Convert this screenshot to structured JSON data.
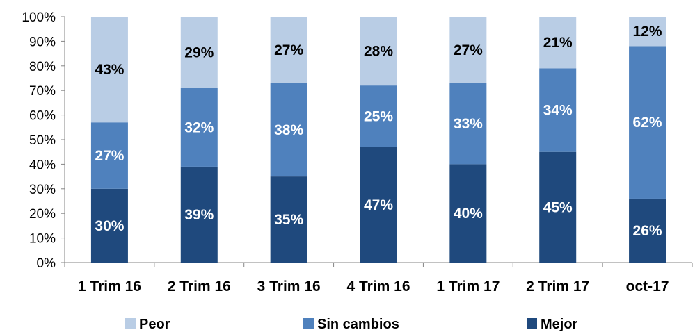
{
  "chart_data": {
    "type": "bar",
    "stacked": true,
    "percent_stacked": true,
    "categories": [
      "1 Trim 16",
      "2 Trim 16",
      "3 Trim 16",
      "4 Trim 16",
      "1 Trim 17",
      "2 Trim 17",
      "oct-17"
    ],
    "series": [
      {
        "name": "Mejor",
        "values": [
          30,
          39,
          35,
          47,
          40,
          45,
          26
        ],
        "labels": [
          "30%",
          "39%",
          "35%",
          "47%",
          "40%",
          "45%",
          "26%"
        ],
        "color": "#1F497D",
        "label_color": "#ffffff"
      },
      {
        "name": "Sin cambios",
        "values": [
          27,
          32,
          38,
          25,
          33,
          34,
          62
        ],
        "labels": [
          "27%",
          "32%",
          "38%",
          "25%",
          "33%",
          "34%",
          "62%"
        ],
        "color": "#4F81BD",
        "label_color": "#ffffff"
      },
      {
        "name": "Peor",
        "values": [
          43,
          29,
          27,
          28,
          27,
          21,
          12
        ],
        "labels": [
          "43%",
          "29%",
          "27%",
          "28%",
          "27%",
          "21%",
          "12%"
        ],
        "color": "#B9CDE5",
        "label_color": "#000000"
      }
    ],
    "yticks": [
      "0%",
      "10%",
      "20%",
      "30%",
      "40%",
      "50%",
      "60%",
      "70%",
      "80%",
      "90%",
      "100%"
    ],
    "ylim": [
      0,
      100
    ],
    "grid": false,
    "legend": {
      "position": "bottom",
      "order": [
        "Peor",
        "Sin cambios",
        "Mejor"
      ]
    }
  }
}
